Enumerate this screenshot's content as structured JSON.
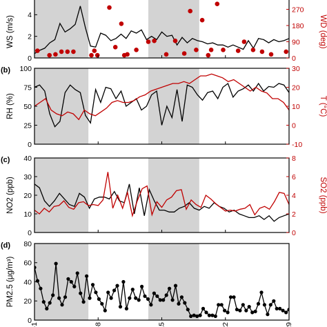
{
  "colors": {
    "black": "#000000",
    "red": "#c00000",
    "shade": "#d3d3d3"
  },
  "chart_data": [
    {
      "panel_label": "",
      "type": "line",
      "shaded_x_ranges": [
        [
          0,
          18
        ],
        [
          38,
          55
        ]
      ],
      "left_axis": {
        "label": "WS (m/s)",
        "ylim": [
          0,
          6
        ],
        "ticks": [
          "0",
          "2",
          "4",
          "6"
        ]
      },
      "right_axis": {
        "label": "WD (deg)",
        "ylim": [
          0,
          360
        ],
        "ticks": [
          "0",
          "90",
          "180",
          "270"
        ]
      },
      "series": [
        {
          "axis": "left",
          "color": "#000000",
          "style": "line",
          "values": [
            0.4,
            0.7,
            0.9,
            1.4,
            1.7,
            3.2,
            2.4,
            2.7,
            3.1,
            4.8,
            2.8,
            1.1,
            1.0,
            2.3,
            2.1,
            1.6,
            1.8,
            2.2,
            1.8,
            2.5,
            2.3,
            2.6,
            1.7,
            2.0,
            1.7,
            2.4,
            2.0,
            2.1,
            1.2,
            1.9,
            1.4,
            1.8,
            1.6,
            1.5,
            1.3,
            1.4,
            1.2,
            1.2,
            1.0,
            1.2,
            1.0,
            0.8,
            1.6,
            0.9,
            1.8,
            1.7,
            1.4,
            1.7,
            1.5,
            1.6,
            1.8
          ]
        },
        {
          "axis": "right",
          "color": "#c00000",
          "style": "markers",
          "points": [
            [
              1,
              40
            ],
            [
              5,
              15
            ],
            [
              7,
              20
            ],
            [
              9,
              35
            ],
            [
              11,
              35
            ],
            [
              13,
              35
            ],
            [
              19,
              15
            ],
            [
              20,
              40
            ],
            [
              21,
              15
            ],
            [
              25,
              280
            ],
            [
              27,
              60
            ],
            [
              29,
              190
            ],
            [
              30,
              15
            ],
            [
              31,
              20
            ],
            [
              34,
              45
            ],
            [
              38,
              90
            ],
            [
              40,
              95
            ],
            [
              44,
              20
            ],
            [
              47,
              95
            ],
            [
              50,
              25
            ],
            [
              52,
              260
            ],
            [
              54,
              45
            ],
            [
              56,
              210
            ],
            [
              58,
              15
            ],
            [
              59,
              45
            ],
            [
              61,
              300
            ],
            [
              63,
              45
            ],
            [
              68,
              40
            ],
            [
              70,
              90
            ],
            [
              73,
              45
            ],
            [
              76,
              35
            ],
            [
              79,
              20
            ],
            [
              83,
              360
            ],
            [
              84,
              35
            ]
          ]
        }
      ]
    },
    {
      "panel_label": "(b)",
      "type": "line",
      "shaded_x_ranges": [
        [
          0,
          18
        ],
        [
          38,
          55
        ]
      ],
      "left_axis": {
        "label": "RH (%)",
        "ylim": [
          0,
          100
        ],
        "ticks": [
          "0",
          "25",
          "50",
          "75",
          "100"
        ]
      },
      "right_axis": {
        "label": "T (°C)",
        "ylim": [
          -10,
          30
        ],
        "ticks": [
          "-10",
          "0",
          "10",
          "20",
          "30"
        ]
      },
      "series": [
        {
          "axis": "left",
          "color": "#000000",
          "style": "line",
          "values": [
            75,
            78,
            70,
            40,
            23,
            30,
            68,
            78,
            72,
            68,
            38,
            28,
            72,
            55,
            75,
            73,
            60,
            70,
            50,
            55,
            60,
            45,
            50,
            65,
            70,
            25,
            50,
            35,
            72,
            30,
            78,
            75,
            65,
            58,
            68,
            70,
            60,
            75,
            80,
            62,
            70,
            73,
            78,
            70,
            80,
            70,
            76,
            75,
            80,
            78,
            68
          ]
        },
        {
          "axis": "right",
          "color": "#c00000",
          "style": "line",
          "values": [
            10,
            12,
            14,
            8,
            6,
            5,
            7,
            6,
            3,
            8,
            6,
            5,
            7,
            9,
            12,
            13,
            12,
            12,
            13,
            15,
            16,
            18,
            19,
            20,
            21,
            22,
            22,
            23,
            22,
            24,
            26,
            26,
            27,
            26,
            25,
            23,
            24,
            22,
            20,
            18,
            20,
            18,
            17,
            14,
            14,
            12,
            8
          ]
        }
      ]
    },
    {
      "panel_label": "(c)",
      "type": "line",
      "shaded_x_ranges": [
        [
          0,
          18
        ],
        [
          38,
          55
        ]
      ],
      "left_axis": {
        "label": "NO2 (ppb)",
        "ylim": [
          0,
          40
        ],
        "ticks": [
          "0",
          "10",
          "20",
          "30",
          "40"
        ]
      },
      "right_axis": {
        "label": "SO2 (ppb)",
        "ylim": [
          0,
          8
        ],
        "ticks": [
          "0",
          "2",
          "4",
          "6",
          "8"
        ]
      },
      "series": [
        {
          "axis": "left",
          "color": "#000000",
          "style": "line",
          "values": [
            26,
            24,
            17,
            14,
            17,
            21,
            18,
            15,
            14,
            21,
            19,
            13,
            18,
            19,
            19,
            18,
            22,
            17,
            16,
            26,
            10,
            24,
            9,
            23,
            17,
            12,
            12,
            11,
            11,
            13,
            14,
            16,
            13,
            12,
            14,
            13,
            16,
            14,
            13,
            11,
            12,
            10,
            9,
            8,
            8,
            9,
            7,
            9,
            6,
            8,
            9,
            10
          ]
        },
        {
          "axis": "right",
          "color": "#c00000",
          "style": "line",
          "values": [
            2.4,
            2.0,
            2.6,
            2.2,
            2.8,
            2.9,
            3.4,
            2.7,
            2.5,
            3.2,
            3.3,
            2.9,
            3.0,
            2.9,
            3.5,
            6.5,
            2.6,
            4.0,
            2.6,
            4.3,
            1.8,
            3.4,
            4.7,
            5.0,
            1.9,
            3.3,
            2.7,
            3.5,
            3.8,
            4.5,
            4.6,
            2.5,
            3.5,
            3.0,
            2.7,
            4.0,
            3.6,
            3.1,
            2.7,
            2.3,
            2.4,
            2.3,
            2.5,
            2.6,
            3.0,
            1.9,
            2.6,
            2.8,
            2.5,
            3.3,
            4.3,
            4.2,
            3.0
          ]
        }
      ]
    },
    {
      "panel_label": "(d)",
      "type": "line",
      "shaded_x_ranges": [
        [
          0,
          18
        ],
        [
          38,
          55
        ]
      ],
      "left_axis": {
        "label": "PM2.5 (μg/m³)",
        "ylim": [
          0,
          80
        ],
        "ticks": [
          "0",
          "20",
          "40",
          "60",
          "80"
        ]
      },
      "series": [
        {
          "axis": "left",
          "color": "#000000",
          "style": "line+markers",
          "values": [
            55,
            41,
            33,
            19,
            12,
            18,
            26,
            59,
            23,
            16,
            24,
            43,
            40,
            35,
            49,
            28,
            19,
            46,
            23,
            37,
            29,
            22,
            17,
            10,
            29,
            23,
            31,
            36,
            14,
            40,
            12,
            23,
            32,
            23,
            21,
            35,
            25,
            22,
            16,
            28,
            25,
            21,
            21,
            26,
            33,
            21,
            36,
            17,
            24,
            18,
            11,
            4,
            5,
            4,
            5,
            12,
            8,
            5,
            5,
            4,
            16,
            16,
            10,
            8,
            24,
            24,
            11,
            10,
            16,
            10,
            14,
            8,
            9,
            17,
            29,
            16,
            6,
            16,
            20,
            12,
            12,
            10,
            8,
            11
          ]
        }
      ]
    }
  ],
  "x_axis": {
    "xlim": [
      0,
      85
    ],
    "tick_labels": [
      "12-1",
      "12-8",
      "12-15",
      "12-22",
      "12-29"
    ]
  }
}
